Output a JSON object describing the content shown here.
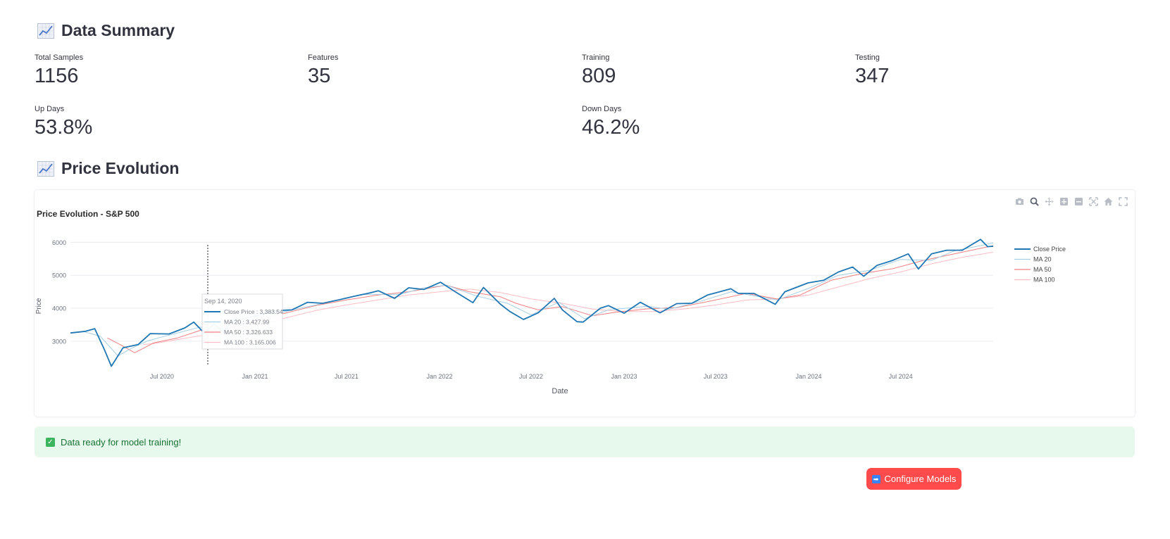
{
  "data_summary": {
    "title": "Data Summary",
    "metrics": [
      {
        "label": "Total Samples",
        "value": "1156"
      },
      {
        "label": "Features",
        "value": "35"
      },
      {
        "label": "Training",
        "value": "809"
      },
      {
        "label": "Testing",
        "value": "347"
      },
      {
        "label": "Up Days",
        "value": "53.8%"
      },
      {
        "label": "Down Days",
        "value": "46.2%"
      }
    ]
  },
  "price_evolution": {
    "title": "Price Evolution",
    "modebar_icons": [
      "camera-icon",
      "zoom-icon",
      "pan-icon",
      "zoom-in-icon",
      "zoom-out-icon",
      "autoscale-icon",
      "reset-axes-icon",
      "fullscreen-icon"
    ]
  },
  "chart_data": {
    "type": "line",
    "title": "Price Evolution - S&P 500",
    "xlabel": "Date",
    "ylabel": "Price",
    "x_range": [
      "2020-01-02",
      "2024-12-31"
    ],
    "ylim": [
      2250,
      6350
    ],
    "yticks": [
      3000,
      4000,
      5000,
      6000
    ],
    "xticks": [
      {
        "date": "2020-07-01",
        "label": "Jul 2020"
      },
      {
        "date": "2021-01-01",
        "label": "Jan 2021"
      },
      {
        "date": "2021-07-01",
        "label": "Jul 2021"
      },
      {
        "date": "2022-01-01",
        "label": "Jan 2022"
      },
      {
        "date": "2022-07-01",
        "label": "Jul 2022"
      },
      {
        "date": "2023-01-01",
        "label": "Jan 2023"
      },
      {
        "date": "2023-07-01",
        "label": "Jul 2023"
      },
      {
        "date": "2024-01-01",
        "label": "Jan 2024"
      },
      {
        "date": "2024-07-01",
        "label": "Jul 2024"
      }
    ],
    "grid": true,
    "legend_position": "right",
    "series": [
      {
        "name": "Close Price",
        "color": "#1f77b4",
        "x": [
          "2020-01-02",
          "2020-02-01",
          "2020-02-19",
          "2020-03-09",
          "2020-03-23",
          "2020-04-15",
          "2020-05-15",
          "2020-06-08",
          "2020-07-15",
          "2020-08-15",
          "2020-09-02",
          "2020-09-14",
          "2020-09-23",
          "2020-10-12",
          "2020-10-30",
          "2020-11-15",
          "2020-12-31",
          "2021-02-15",
          "2021-03-15",
          "2021-04-15",
          "2021-05-15",
          "2021-06-15",
          "2021-07-15",
          "2021-08-15",
          "2021-09-02",
          "2021-10-04",
          "2021-11-01",
          "2021-12-01",
          "2022-01-03",
          "2022-02-01",
          "2022-03-08",
          "2022-03-29",
          "2022-05-01",
          "2022-05-20",
          "2022-06-16",
          "2022-07-15",
          "2022-08-16",
          "2022-09-01",
          "2022-09-30",
          "2022-10-12",
          "2022-11-15",
          "2022-12-01",
          "2023-01-01",
          "2023-02-02",
          "2023-03-13",
          "2023-04-15",
          "2023-05-15",
          "2023-06-15",
          "2023-07-31",
          "2023-08-15",
          "2023-09-15",
          "2023-10-27",
          "2023-11-15",
          "2023-12-31",
          "2024-01-31",
          "2024-02-29",
          "2024-03-28",
          "2024-04-19",
          "2024-05-15",
          "2024-06-15",
          "2024-07-16",
          "2024-08-05",
          "2024-08-31",
          "2024-09-30",
          "2024-10-31",
          "2024-11-15",
          "2024-12-06",
          "2024-12-20",
          "2024-12-31"
        ],
        "y": [
          3250,
          3300,
          3380,
          2750,
          2240,
          2800,
          2900,
          3230,
          3220,
          3400,
          3580,
          3383,
          3240,
          3530,
          3270,
          3600,
          3760,
          3930,
          3950,
          4180,
          4150,
          4250,
          4360,
          4460,
          4530,
          4300,
          4620,
          4570,
          4790,
          4500,
          4170,
          4630,
          4130,
          3900,
          3660,
          3860,
          4300,
          3950,
          3590,
          3580,
          4000,
          4080,
          3850,
          4180,
          3860,
          4140,
          4150,
          4400,
          4590,
          4450,
          4450,
          4120,
          4500,
          4770,
          4850,
          5100,
          5250,
          4970,
          5300,
          5450,
          5650,
          5190,
          5650,
          5760,
          5760,
          5900,
          6090,
          5870,
          5880
        ]
      },
      {
        "name": "MA 20",
        "color": "#a6cee3",
        "x": [
          "2020-01-31",
          "2020-03-01",
          "2020-04-05",
          "2020-05-01",
          "2020-06-01",
          "2020-07-01",
          "2020-08-01",
          "2020-09-14",
          "2020-10-15",
          "2020-12-01",
          "2021-02-01",
          "2021-04-01",
          "2021-06-01",
          "2021-08-01",
          "2021-10-15",
          "2021-12-01",
          "2022-01-15",
          "2022-03-15",
          "2022-05-15",
          "2022-07-01",
          "2022-08-25",
          "2022-10-15",
          "2022-12-01",
          "2023-02-15",
          "2023-03-31",
          "2023-06-01",
          "2023-08-01",
          "2023-10-31",
          "2023-12-31",
          "2024-02-29",
          "2024-04-30",
          "2024-07-01",
          "2024-08-31",
          "2024-10-15",
          "2024-12-31"
        ],
        "y": [
          3280,
          3150,
          2550,
          2780,
          3000,
          3130,
          3250,
          3428,
          3380,
          3560,
          3800,
          4000,
          4200,
          4420,
          4420,
          4620,
          4700,
          4370,
          4150,
          3800,
          4180,
          3680,
          3950,
          4060,
          3970,
          4210,
          4500,
          4250,
          4600,
          5000,
          5150,
          5480,
          5450,
          5740,
          5980
        ]
      },
      {
        "name": "MA 50",
        "color": "#f08080",
        "x": [
          "2020-03-15",
          "2020-04-15",
          "2020-05-08",
          "2020-06-15",
          "2020-08-01",
          "2020-09-14",
          "2020-11-01",
          "2021-01-01",
          "2021-03-01",
          "2021-05-01",
          "2021-07-01",
          "2021-09-01",
          "2021-11-01",
          "2022-01-15",
          "2022-03-01",
          "2022-05-01",
          "2022-06-01",
          "2022-07-15",
          "2022-09-01",
          "2022-10-31",
          "2022-12-15",
          "2023-02-15",
          "2023-04-15",
          "2023-06-15",
          "2023-08-31",
          "2023-10-31",
          "2023-12-15",
          "2024-02-15",
          "2024-04-15",
          "2024-06-15",
          "2024-08-15",
          "2024-10-15",
          "2024-12-31"
        ],
        "y": [
          3100,
          2850,
          2650,
          2950,
          3100,
          3327,
          3350,
          3620,
          3850,
          4080,
          4250,
          4400,
          4500,
          4700,
          4500,
          4350,
          4150,
          3950,
          4050,
          3770,
          3880,
          3980,
          4020,
          4200,
          4450,
          4280,
          4400,
          4850,
          5050,
          5200,
          5450,
          5650,
          5900
        ]
      },
      {
        "name": "MA 100",
        "color": "#ffbcc4",
        "x": [
          "2020-05-25",
          "2020-06-15",
          "2020-08-01",
          "2020-09-14",
          "2020-11-01",
          "2021-01-01",
          "2021-03-01",
          "2021-05-01",
          "2021-07-01",
          "2021-09-01",
          "2021-11-01",
          "2022-01-15",
          "2022-03-01",
          "2022-05-01",
          "2022-07-01",
          "2022-09-01",
          "2022-11-01",
          "2023-01-01",
          "2023-03-01",
          "2023-05-01",
          "2023-07-01",
          "2023-09-01",
          "2023-11-01",
          "2024-01-01",
          "2024-03-01",
          "2024-05-01",
          "2024-07-01",
          "2024-09-01",
          "2024-11-01",
          "2024-12-31"
        ],
        "y": [
          2900,
          2930,
          3050,
          3165,
          3280,
          3450,
          3700,
          3930,
          4100,
          4250,
          4400,
          4520,
          4580,
          4480,
          4280,
          4150,
          3970,
          3900,
          3900,
          3980,
          4100,
          4250,
          4280,
          4400,
          4650,
          4900,
          5100,
          5350,
          5550,
          5700
        ]
      }
    ],
    "hover": {
      "date": "Sep 14, 2020",
      "rows": [
        {
          "series": "Close Price",
          "label": "Close Price : 3,383.54"
        },
        {
          "series": "MA 20",
          "label": "MA 20 : 3,427.99"
        },
        {
          "series": "MA 50",
          "label": "MA 50 : 3,326.633"
        },
        {
          "series": "MA 100",
          "label": "MA 100 : 3,165.006"
        }
      ]
    }
  },
  "alert": {
    "text": "Data ready for model training!"
  },
  "configure_button": {
    "label": "Configure Models"
  }
}
